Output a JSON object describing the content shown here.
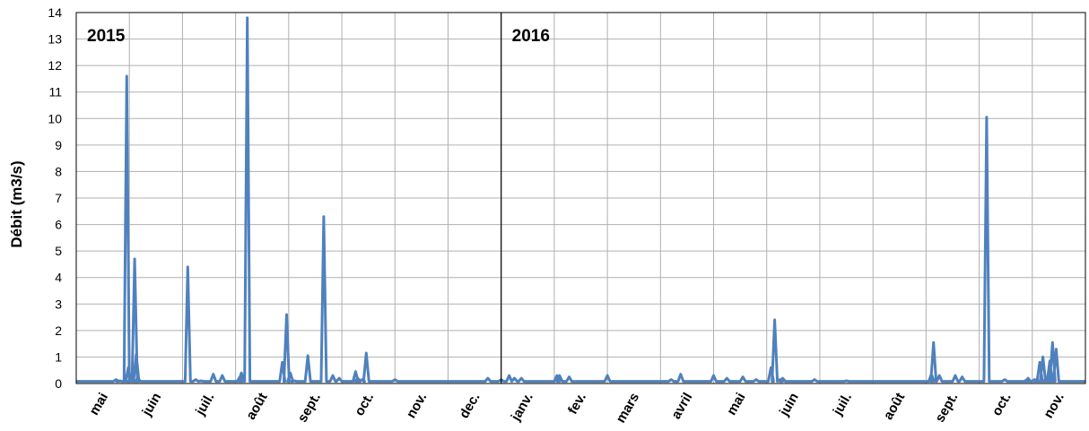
{
  "chart_data": {
    "type": "line",
    "ylabel": "Débit (m3/s)",
    "ylim": [
      0,
      14
    ],
    "yticks": [
      0,
      1,
      2,
      3,
      4,
      5,
      6,
      7,
      8,
      9,
      10,
      11,
      12,
      13,
      14
    ],
    "months": [
      "mai",
      "juin",
      "juil.",
      "août",
      "sept.",
      "oct.",
      "nov.",
      "dec.",
      "janv.",
      "fev.",
      "mars",
      "avril",
      "mai",
      "juin",
      "juil.",
      "août",
      "sept.",
      "oct.",
      "nov."
    ],
    "years": [
      {
        "label": "2015",
        "month_index": 0
      },
      {
        "label": "2016",
        "month_index": 8
      }
    ],
    "grid": true,
    "series": [
      {
        "color": "#4f81bd",
        "baseline": 0.08,
        "x": [
          0.75,
          0.81,
          0.95,
          0.98,
          1.1,
          1.13,
          1.16,
          2.1,
          2.25,
          2.35,
          2.58,
          2.75,
          3.08,
          3.11,
          3.22,
          3.88,
          3.96,
          4.03,
          4.1,
          4.36,
          4.66,
          4.83,
          4.95,
          5.26,
          5.3,
          5.38,
          5.46,
          6.0,
          7.75,
          8.0,
          8.15,
          8.25,
          8.38,
          9.05,
          9.1,
          9.28,
          10.0,
          11.2,
          11.38,
          12.0,
          12.25,
          12.55,
          12.8,
          13.08,
          13.15,
          13.25,
          13.3,
          13.9,
          14.5,
          16.1,
          16.14,
          16.25,
          16.55,
          16.68,
          17.14,
          17.48,
          17.9,
          17.92,
          18.04,
          18.08,
          18.14,
          18.2,
          18.25,
          18.3,
          18.33,
          18.38,
          18.45
        ],
        "y": [
          0.15,
          0.1,
          11.6,
          0.6,
          4.7,
          1.1,
          0.2,
          4.4,
          0.15,
          0.1,
          0.35,
          0.3,
          0.25,
          0.4,
          13.8,
          0.8,
          2.6,
          0.4,
          0.1,
          1.05,
          6.3,
          0.3,
          0.2,
          0.45,
          0.2,
          0.15,
          1.15,
          0.15,
          0.2,
          0.15,
          0.3,
          0.2,
          0.2,
          0.3,
          0.3,
          0.25,
          0.3,
          0.15,
          0.35,
          0.3,
          0.2,
          0.25,
          0.15,
          0.6,
          2.4,
          0.15,
          0.2,
          0.15,
          0.1,
          0.35,
          1.55,
          0.3,
          0.3,
          0.25,
          10.05,
          0.15,
          0.15,
          0.2,
          0.15,
          0.15,
          0.8,
          1.0,
          0.15,
          0.15,
          0.85,
          1.55,
          1.3
        ]
      }
    ]
  }
}
